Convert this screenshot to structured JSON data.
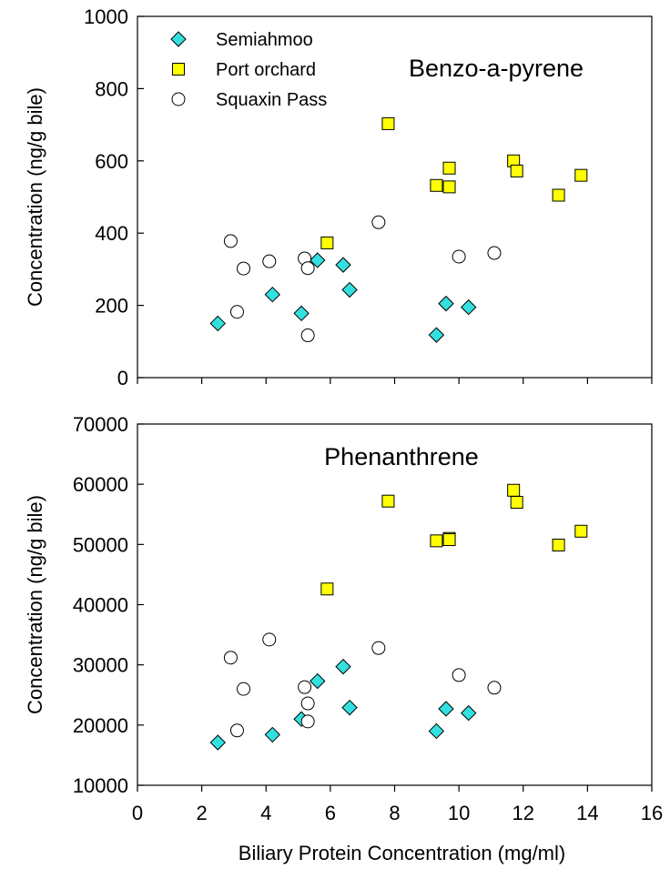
{
  "chart_data": [
    {
      "type": "scatter",
      "title": "Benzo-a-pyrene",
      "xlabel": "",
      "ylabel": "Concentration (ng/g bile)",
      "xlim": [
        0,
        16
      ],
      "ylim": [
        0,
        1000
      ],
      "xticks": [
        0,
        2,
        4,
        6,
        8,
        10,
        12,
        14,
        16
      ],
      "yticks": [
        0,
        200,
        400,
        600,
        800,
        1000
      ],
      "show_xtick_labels": false,
      "legend": "top-left",
      "grid": false,
      "series": [
        {
          "name": "Semiahmoo",
          "marker": "diamond",
          "color": "#33e0e0",
          "points": [
            [
              2.5,
              150
            ],
            [
              4.2,
              230
            ],
            [
              5.1,
              178
            ],
            [
              5.6,
              325
            ],
            [
              6.4,
              312
            ],
            [
              6.6,
              243
            ],
            [
              9.3,
              118
            ],
            [
              9.6,
              205
            ],
            [
              10.3,
              195
            ]
          ]
        },
        {
          "name": "Port orchard",
          "marker": "square",
          "color": "#ffff00",
          "points": [
            [
              5.9,
              373
            ],
            [
              7.8,
              703
            ],
            [
              9.3,
              532
            ],
            [
              9.7,
              580
            ],
            [
              9.7,
              528
            ],
            [
              11.7,
              600
            ],
            [
              11.8,
              572
            ],
            [
              13.1,
              505
            ],
            [
              13.8,
              560
            ]
          ]
        },
        {
          "name": "Squaxin Pass",
          "marker": "circle",
          "color": "#ffffff",
          "points": [
            [
              2.9,
              378
            ],
            [
              3.1,
              182
            ],
            [
              3.3,
              302
            ],
            [
              4.1,
              322
            ],
            [
              5.2,
              330
            ],
            [
              5.3,
              303
            ],
            [
              5.3,
              117
            ],
            [
              7.5,
              430
            ],
            [
              10.0,
              335
            ],
            [
              11.1,
              345
            ]
          ]
        }
      ]
    },
    {
      "type": "scatter",
      "title": "Phenanthrene",
      "xlabel": "Biliary Protein Concentration (mg/ml)",
      "ylabel": "Concentration (ng/g bile)",
      "xlim": [
        0,
        16
      ],
      "ylim": [
        10000,
        70000
      ],
      "xticks": [
        0,
        2,
        4,
        6,
        8,
        10,
        12,
        14,
        16
      ],
      "yticks": [
        10000,
        20000,
        30000,
        40000,
        50000,
        60000,
        70000
      ],
      "show_xtick_labels": true,
      "grid": false,
      "series": [
        {
          "name": "Semiahmoo",
          "marker": "diamond",
          "color": "#33e0e0",
          "points": [
            [
              2.5,
              17100
            ],
            [
              4.2,
              18400
            ],
            [
              5.1,
              21000
            ],
            [
              5.6,
              27300
            ],
            [
              6.4,
              29700
            ],
            [
              6.6,
              22900
            ],
            [
              9.3,
              19000
            ],
            [
              9.6,
              22700
            ],
            [
              10.3,
              22000
            ]
          ]
        },
        {
          "name": "Port orchard",
          "marker": "square",
          "color": "#ffff00",
          "points": [
            [
              5.9,
              42600
            ],
            [
              7.8,
              57200
            ],
            [
              9.3,
              50600
            ],
            [
              9.7,
              51000
            ],
            [
              9.7,
              50800
            ],
            [
              11.7,
              59000
            ],
            [
              11.8,
              57000
            ],
            [
              13.1,
              49900
            ],
            [
              13.8,
              52200
            ]
          ]
        },
        {
          "name": "Squaxin Pass",
          "marker": "circle",
          "color": "#ffffff",
          "points": [
            [
              2.9,
              31200
            ],
            [
              3.1,
              19100
            ],
            [
              3.3,
              26000
            ],
            [
              4.1,
              34200
            ],
            [
              5.2,
              26300
            ],
            [
              5.3,
              23600
            ],
            [
              5.3,
              20600
            ],
            [
              7.5,
              32800
            ],
            [
              10.0,
              28300
            ],
            [
              11.1,
              26200
            ]
          ]
        }
      ]
    }
  ]
}
